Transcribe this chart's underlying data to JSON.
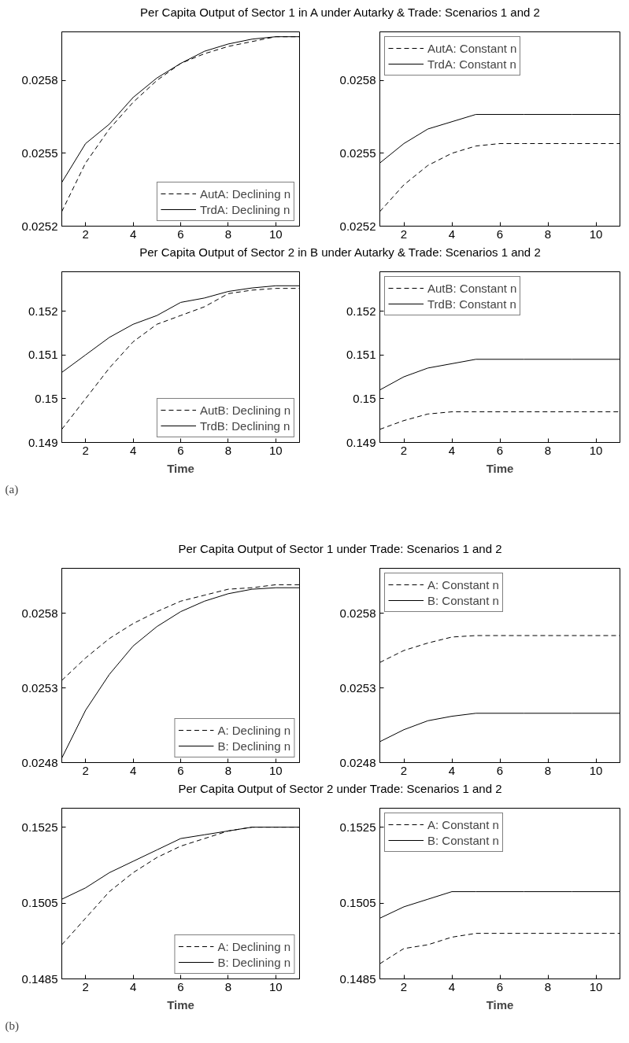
{
  "chart_data": [
    {
      "type": "line",
      "title": "Per Capita Output of Sector 1 in A under Autarky & Trade: Scenarios 1 and 2",
      "x": [
        1,
        2,
        3,
        4,
        5,
        6,
        7,
        8,
        9,
        10,
        11
      ],
      "xlim": [
        1,
        11
      ],
      "xticks": [
        2,
        4,
        6,
        8,
        10
      ],
      "ylim": [
        0.0252,
        0.026
      ],
      "yticks": [
        0.0252,
        0.0255,
        0.0258
      ],
      "legend": "bottom right",
      "series": [
        {
          "name": "AutA: Declining n",
          "color": "#000000",
          "line_style": "dashed",
          "values": [
            0.02526,
            0.02546,
            0.0256,
            0.02571,
            0.0258,
            0.02587,
            0.02591,
            0.02594,
            0.02596,
            0.02598,
            0.02598
          ]
        },
        {
          "name": "TrdA: Declining n",
          "color": "#000000",
          "line_style": "solid",
          "values": [
            0.02538,
            0.02554,
            0.02562,
            0.02573,
            0.02581,
            0.02587,
            0.02592,
            0.02595,
            0.02597,
            0.02598,
            0.02598
          ]
        }
      ]
    },
    {
      "type": "line",
      "x": [
        1,
        2,
        3,
        4,
        5,
        6,
        7,
        8,
        9,
        10,
        11
      ],
      "xlim": [
        1,
        11
      ],
      "xticks": [
        2,
        4,
        6,
        8,
        10
      ],
      "ylim": [
        0.0252,
        0.026
      ],
      "yticks": [
        0.0252,
        0.0255,
        0.0258
      ],
      "legend": "top left",
      "series": [
        {
          "name": "AutA: Constant n",
          "color": "#000000",
          "line_style": "dashed",
          "values": [
            0.02526,
            0.02537,
            0.02545,
            0.0255,
            0.02553,
            0.02554,
            0.02554,
            0.02554,
            0.02554,
            0.02554,
            0.02554
          ]
        },
        {
          "name": "TrdA: Constant n",
          "color": "#000000",
          "line_style": "solid",
          "values": [
            0.02546,
            0.02554,
            0.0256,
            0.02563,
            0.02566,
            0.02566,
            0.02566,
            0.02566,
            0.02566,
            0.02566,
            0.02566
          ]
        }
      ]
    },
    {
      "type": "line",
      "title": "Per Capita Output of Sector 2 in B under Autarky & Trade: Scenarios 1 and 2",
      "xlabel": "Time",
      "annotations": [
        "(a)"
      ],
      "x": [
        1,
        2,
        3,
        4,
        5,
        6,
        7,
        8,
        9,
        10,
        11
      ],
      "xlim": [
        1,
        11
      ],
      "xticks": [
        2,
        4,
        6,
        8,
        10
      ],
      "ylim": [
        0.149,
        0.1529
      ],
      "yticks": [
        0.149,
        0.15,
        0.151,
        0.152
      ],
      "legend": "bottom right",
      "series": [
        {
          "name": "AutB: Declining n",
          "color": "#000000",
          "line_style": "dashed",
          "values": [
            0.1493,
            0.15,
            0.1507,
            0.1513,
            0.1517,
            0.1519,
            0.1521,
            0.1524,
            0.15248,
            0.15252,
            0.15252
          ]
        },
        {
          "name": "TrdB: Declining n",
          "color": "#000000",
          "line_style": "solid",
          "values": [
            0.1506,
            0.151,
            0.1514,
            0.1517,
            0.1519,
            0.1522,
            0.1523,
            0.15245,
            0.15253,
            0.15258,
            0.15258
          ]
        }
      ]
    },
    {
      "type": "line",
      "xlabel": "Time",
      "x": [
        1,
        2,
        3,
        4,
        5,
        6,
        7,
        8,
        9,
        10,
        11
      ],
      "xlim": [
        1,
        11
      ],
      "xticks": [
        2,
        4,
        6,
        8,
        10
      ],
      "ylim": [
        0.149,
        0.1529
      ],
      "yticks": [
        0.149,
        0.15,
        0.151,
        0.152
      ],
      "legend": "top left",
      "series": [
        {
          "name": "AutB: Constant n",
          "color": "#000000",
          "line_style": "dashed",
          "values": [
            0.1493,
            0.1495,
            0.14965,
            0.1497,
            0.1497,
            0.1497,
            0.1497,
            0.1497,
            0.1497,
            0.1497,
            0.1497
          ]
        },
        {
          "name": "TrdB: Constant n",
          "color": "#000000",
          "line_style": "solid",
          "values": [
            0.1502,
            0.1505,
            0.1507,
            0.1508,
            0.1509,
            0.1509,
            0.1509,
            0.1509,
            0.1509,
            0.1509,
            0.1509
          ]
        }
      ]
    },
    {
      "type": "line",
      "title": "Per Capita Output of Sector 1 under Trade: Scenarios 1 and 2",
      "x": [
        1,
        2,
        3,
        4,
        5,
        6,
        7,
        8,
        9,
        10,
        11
      ],
      "xlim": [
        1,
        11
      ],
      "xticks": [
        2,
        4,
        6,
        8,
        10
      ],
      "ylim": [
        0.0248,
        0.0261
      ],
      "yticks": [
        0.0248,
        0.0253,
        0.0258
      ],
      "legend": "bottom right",
      "series": [
        {
          "name": "A: Declining n",
          "color": "#000000",
          "line_style": "dashed",
          "values": [
            0.02535,
            0.0255,
            0.02563,
            0.02573,
            0.02581,
            0.02588,
            0.02592,
            0.02596,
            0.02597,
            0.02599,
            0.02599
          ]
        },
        {
          "name": "B: Declining n",
          "color": "#000000",
          "line_style": "solid",
          "values": [
            0.02483,
            0.02515,
            0.02539,
            0.02558,
            0.02571,
            0.02581,
            0.02588,
            0.02593,
            0.02596,
            0.02597,
            0.02597
          ]
        }
      ]
    },
    {
      "type": "line",
      "x": [
        1,
        2,
        3,
        4,
        5,
        6,
        7,
        8,
        9,
        10,
        11
      ],
      "xlim": [
        1,
        11
      ],
      "xticks": [
        2,
        4,
        6,
        8,
        10
      ],
      "ylim": [
        0.0248,
        0.0261
      ],
      "yticks": [
        0.0248,
        0.0253,
        0.0258
      ],
      "legend": "top left",
      "series": [
        {
          "name": "A: Constant n",
          "color": "#000000",
          "line_style": "dashed",
          "values": [
            0.02547,
            0.02555,
            0.0256,
            0.02564,
            0.02565,
            0.02565,
            0.02565,
            0.02565,
            0.02565,
            0.02565,
            0.02565
          ]
        },
        {
          "name": "B: Constant n",
          "color": "#000000",
          "line_style": "solid",
          "values": [
            0.02494,
            0.02502,
            0.02508,
            0.02511,
            0.02513,
            0.02513,
            0.02513,
            0.02513,
            0.02513,
            0.02513,
            0.02513
          ]
        }
      ]
    },
    {
      "type": "line",
      "title": "Per Capita Output of Sector 2 under Trade: Scenarios 1 and 2",
      "xlabel": "Time",
      "annotations": [
        "(b)"
      ],
      "x": [
        1,
        2,
        3,
        4,
        5,
        6,
        7,
        8,
        9,
        10,
        11
      ],
      "xlim": [
        1,
        11
      ],
      "xticks": [
        2,
        4,
        6,
        8,
        10
      ],
      "ylim": [
        0.1485,
        0.153
      ],
      "yticks": [
        0.1485,
        0.1505,
        0.1525
      ],
      "legend": "bottom right",
      "series": [
        {
          "name": "A: Declining n",
          "color": "#000000",
          "line_style": "dashed",
          "values": [
            0.1494,
            0.1501,
            0.1508,
            0.1513,
            0.1517,
            0.152,
            0.1522,
            0.1524,
            0.1525,
            0.1525,
            0.1525
          ]
        },
        {
          "name": "B: Declining n",
          "color": "#000000",
          "line_style": "solid",
          "values": [
            0.1506,
            0.1509,
            0.1513,
            0.1516,
            0.1519,
            0.1522,
            0.1523,
            0.1524,
            0.1525,
            0.1525,
            0.1525
          ]
        }
      ]
    },
    {
      "type": "line",
      "xlabel": "Time",
      "x": [
        1,
        2,
        3,
        4,
        5,
        6,
        7,
        8,
        9,
        10,
        11
      ],
      "xlim": [
        1,
        11
      ],
      "xticks": [
        2,
        4,
        6,
        8,
        10
      ],
      "ylim": [
        0.1485,
        0.153
      ],
      "yticks": [
        0.1485,
        0.1505,
        0.1525
      ],
      "legend": "top left",
      "series": [
        {
          "name": "A: Constant n",
          "color": "#000000",
          "line_style": "dashed",
          "values": [
            0.1489,
            0.1493,
            0.1494,
            0.1496,
            0.1497,
            0.1497,
            0.1497,
            0.1497,
            0.1497,
            0.1497,
            0.1497
          ]
        },
        {
          "name": "B: Constant n",
          "color": "#000000",
          "line_style": "solid",
          "values": [
            0.1501,
            0.1504,
            0.1506,
            0.1508,
            0.1508,
            0.1508,
            0.1508,
            0.1508,
            0.1508,
            0.1508,
            0.1508
          ]
        }
      ]
    }
  ]
}
